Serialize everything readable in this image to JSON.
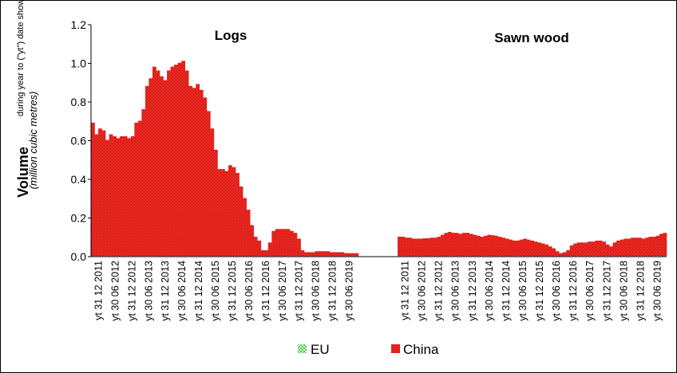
{
  "chart_data": {
    "type": "area",
    "ylabel": "Volume",
    "ylabel_sub": "during year to (\"yt\") date shown",
    "ylabel_unit": "(million cubic metres)",
    "ylim": [
      0,
      1.2
    ],
    "yticks": [
      "0.0",
      "0.2",
      "0.4",
      "0.6",
      "0.8",
      "1.0",
      "1.2"
    ],
    "grid": false,
    "legend_position": "bottom",
    "series": [
      {
        "name": "EU",
        "color": "#33cc33"
      },
      {
        "name": "China",
        "color": "#e8251f"
      }
    ],
    "panels": [
      {
        "title": "Logs",
        "x_labels": [
          "yt 31 12 2011",
          "yt 30 06 2012",
          "yt 31 12 2012",
          "yt 30 06 2013",
          "yt 31 12 2013",
          "yt 30 06 2014",
          "yt 31 12 2014",
          "yt 30 06 2015",
          "yt 31 12 2015",
          "yt 30 06 2016",
          "yt 31 12 2016",
          "yt 30 06 2017",
          "yt 31 12 2017",
          "yt 30 06 2018",
          "yt 31 12 2018",
          "yt 30 06 2019"
        ],
        "china": [
          0.69,
          0.63,
          0.66,
          0.65,
          0.6,
          0.63,
          0.62,
          0.61,
          0.62,
          0.62,
          0.61,
          0.62,
          0.69,
          0.7,
          0.76,
          0.88,
          0.92,
          0.98,
          0.96,
          0.93,
          0.91,
          0.96,
          0.98,
          0.99,
          1.0,
          1.01,
          0.96,
          0.88,
          0.87,
          0.89,
          0.86,
          0.82,
          0.75,
          0.66,
          0.55,
          0.45,
          0.45,
          0.44,
          0.47,
          0.46,
          0.43,
          0.36,
          0.3,
          0.24,
          0.16,
          0.1,
          0.08,
          0.03,
          0.03,
          0.07,
          0.13,
          0.14,
          0.14,
          0.14,
          0.14,
          0.13,
          0.12,
          0.09,
          0.03,
          0.02,
          0.02,
          0.02,
          0.025,
          0.025,
          0.025,
          0.025,
          0.02,
          0.02,
          0.02,
          0.02,
          0.015,
          0.015,
          0.015,
          0.015
        ],
        "eu": [
          0.003,
          0.003,
          0.003,
          0.003,
          0.003,
          0.003,
          0.003,
          0.003,
          0.003,
          0.003,
          0.003,
          0.003,
          0.003,
          0.003,
          0.003,
          0.003,
          0.003,
          0.003,
          0.003,
          0.003,
          0.003,
          0.003,
          0.003,
          0.003,
          0.003,
          0.003,
          0.003,
          0.003,
          0.003,
          0.003,
          0.003,
          0.003,
          0.003,
          0.003,
          0.003,
          0.003,
          0.003,
          0.003,
          0.003,
          0.003,
          0.003,
          0.003,
          0.003,
          0.003,
          0.003,
          0.003,
          0.003,
          0.003,
          0.003,
          0.003,
          0.003,
          0.003,
          0.003,
          0.003,
          0.003,
          0.003,
          0.003,
          0.003,
          0.003,
          0.003,
          0.003,
          0.003,
          0.003,
          0.003,
          0.003,
          0.003,
          0.003,
          0.003,
          0.003,
          0.003,
          0.003,
          0.003,
          0.003,
          0.003
        ]
      },
      {
        "title": "Sawn wood",
        "x_labels": [
          "yt 31 12 2011",
          "yt 30 06 2012",
          "yt 31 12 2012",
          "yt 30 06 2013",
          "yt 31 12 2013",
          "yt 30 06 2014",
          "yt 31 12 2014",
          "yt 30 06 2015",
          "yt 31 12 2015",
          "yt 30 06 2016",
          "yt 31 12 2016",
          "yt 30 06 2017",
          "yt 31 12 2017",
          "yt 30 06 2018",
          "yt 31 12 2018",
          "yt 30 06 2019"
        ],
        "china": [
          0.1,
          0.1,
          0.095,
          0.095,
          0.09,
          0.09,
          0.09,
          0.092,
          0.092,
          0.095,
          0.095,
          0.1,
          0.11,
          0.12,
          0.125,
          0.12,
          0.12,
          0.115,
          0.12,
          0.12,
          0.115,
          0.11,
          0.105,
          0.1,
          0.105,
          0.11,
          0.108,
          0.105,
          0.1,
          0.095,
          0.09,
          0.085,
          0.08,
          0.08,
          0.085,
          0.09,
          0.085,
          0.08,
          0.075,
          0.07,
          0.065,
          0.06,
          0.05,
          0.04,
          0.025,
          0.015,
          0.02,
          0.03,
          0.055,
          0.065,
          0.07,
          0.07,
          0.07,
          0.075,
          0.075,
          0.08,
          0.08,
          0.075,
          0.06,
          0.05,
          0.07,
          0.08,
          0.085,
          0.09,
          0.09,
          0.095,
          0.095,
          0.095,
          0.09,
          0.095,
          0.1,
          0.1,
          0.105,
          0.115,
          0.12
        ],
        "eu": [
          0.003,
          0.003,
          0.003,
          0.003,
          0.003,
          0.003,
          0.003,
          0.003,
          0.003,
          0.003,
          0.003,
          0.003,
          0.003,
          0.003,
          0.003,
          0.003,
          0.003,
          0.003,
          0.003,
          0.003,
          0.003,
          0.003,
          0.003,
          0.003,
          0.003,
          0.003,
          0.003,
          0.003,
          0.003,
          0.003,
          0.003,
          0.003,
          0.003,
          0.003,
          0.003,
          0.003,
          0.003,
          0.003,
          0.003,
          0.003,
          0.003,
          0.003,
          0.003,
          0.003,
          0.003,
          0.003,
          0.003,
          0.003,
          0.003,
          0.003,
          0.003,
          0.003,
          0.003,
          0.003,
          0.003,
          0.003,
          0.003,
          0.003,
          0.003,
          0.003,
          0.003,
          0.003,
          0.003,
          0.003,
          0.003,
          0.003,
          0.003,
          0.003,
          0.003,
          0.003,
          0.003,
          0.003,
          0.003,
          0.003,
          0.003
        ]
      }
    ]
  }
}
